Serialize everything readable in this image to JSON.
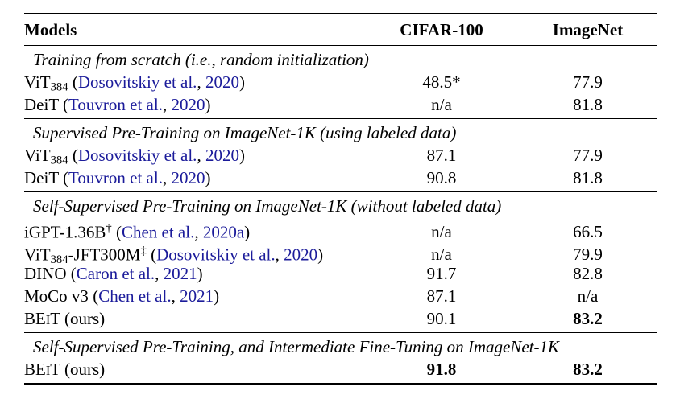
{
  "colors": {
    "citation": "#1b1b9a",
    "rule": "#000000",
    "text": "#000000",
    "background": "#ffffff"
  },
  "table": {
    "columns": {
      "models": "Models",
      "cifar": "CIFAR-100",
      "imagenet": "ImageNet"
    },
    "sections": [
      {
        "title": "Training from scratch (i.e., random initialization)",
        "rows": [
          {
            "pre": "ViT",
            "sub": "384",
            "paren_open": " (",
            "authors": "Dosovitskiy et al.",
            "comma": ", ",
            "year": "2020",
            "paren_close": ")",
            "cifar": "48.5*",
            "imagenet": "77.9"
          },
          {
            "pre": "DeiT",
            "paren_open": " (",
            "authors": "Touvron et al.",
            "comma": ", ",
            "year": "2020",
            "paren_close": ")",
            "cifar": "n/a",
            "imagenet": "81.8"
          }
        ]
      },
      {
        "title": "Supervised Pre-Training on ImageNet-1K (using labeled data)",
        "rows": [
          {
            "pre": "ViT",
            "sub": "384",
            "paren_open": " (",
            "authors": "Dosovitskiy et al.",
            "comma": ", ",
            "year": "2020",
            "paren_close": ")",
            "cifar": "87.1",
            "imagenet": "77.9"
          },
          {
            "pre": "DeiT",
            "paren_open": " (",
            "authors": "Touvron et al.",
            "comma": ", ",
            "year": "2020",
            "paren_close": ")",
            "cifar": "90.8",
            "imagenet": "81.8"
          }
        ]
      },
      {
        "title": "Self-Supervised Pre-Training on ImageNet-1K (without labeled data)",
        "rows": [
          {
            "pre": "iGPT-1.36B",
            "sup": "†",
            "paren_open": " (",
            "authors": "Chen et al.",
            "comma": ", ",
            "year": "2020a",
            "paren_close": ")",
            "cifar": "n/a",
            "imagenet": "66.5"
          },
          {
            "pre": "ViT",
            "sub": "384",
            "mid": "-JFT300M",
            "sup": "‡",
            "paren_open": " (",
            "authors": "Dosovitskiy et al.",
            "comma": ", ",
            "year": "2020",
            "paren_close": ")",
            "cifar": "n/a",
            "imagenet": "79.9"
          },
          {
            "pre": "DINO",
            "paren_open": " (",
            "authors": "Caron et al.",
            "comma": ", ",
            "year": "2021",
            "paren_close": ")",
            "cifar": "91.7",
            "imagenet": "82.8"
          },
          {
            "pre": "MoCo v3",
            "paren_open": " (",
            "authors": "Chen et al.",
            "comma": ", ",
            "year": "2021",
            "paren_close": ")",
            "cifar": "87.1",
            "imagenet": "n/a"
          },
          {
            "pre": "BE",
            "sc": "I",
            "mid": "T",
            "paren_open": " (",
            "plain": "ours",
            "paren_close": ")",
            "cifar": "90.1",
            "imagenet": "83.2"
          }
        ]
      },
      {
        "title": "Self-Supervised Pre-Training, and Intermediate Fine-Tuning on ImageNet-1K",
        "rows": [
          {
            "pre": "BE",
            "sc": "I",
            "mid": "T",
            "paren_open": " (",
            "plain": "ours",
            "paren_close": ")",
            "cifar": "91.8",
            "imagenet": "83.2"
          }
        ]
      }
    ]
  }
}
